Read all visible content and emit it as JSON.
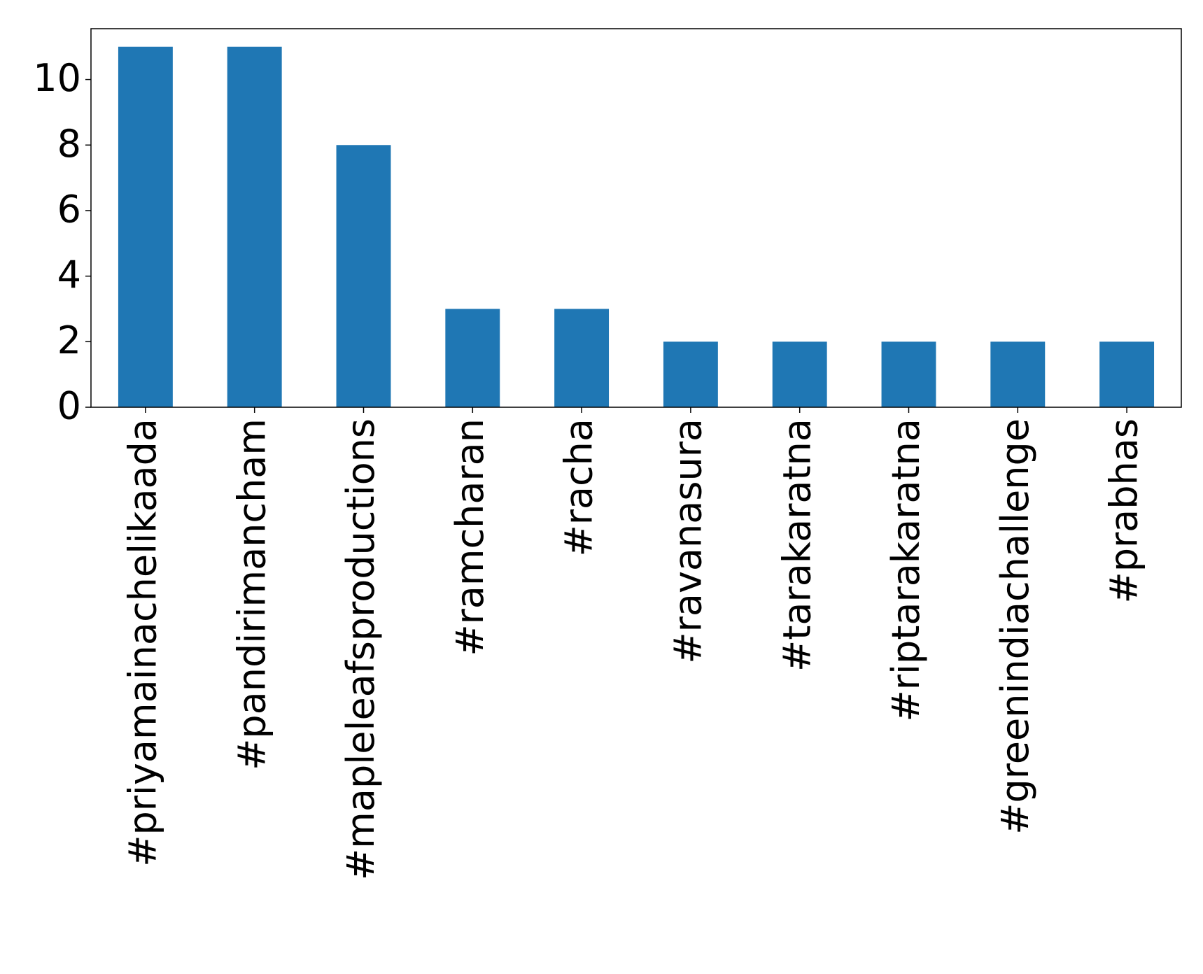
{
  "chart_data": {
    "type": "bar",
    "categories": [
      "#priyamainachelikaada",
      "#pandirimancham",
      "#mapleleafsproductions",
      "#ramcharan",
      "#racha",
      "#ravanasura",
      "#tarakaratna",
      "#riptarakaratna",
      "#greenindiachallenge",
      "#prabhas"
    ],
    "values": [
      11,
      11,
      8,
      3,
      3,
      2,
      2,
      2,
      2,
      2
    ],
    "color": "#1f77b4",
    "ylim": [
      0,
      11.55
    ],
    "yticks": [
      0,
      2,
      4,
      6,
      8,
      10
    ],
    "grid": false
  }
}
